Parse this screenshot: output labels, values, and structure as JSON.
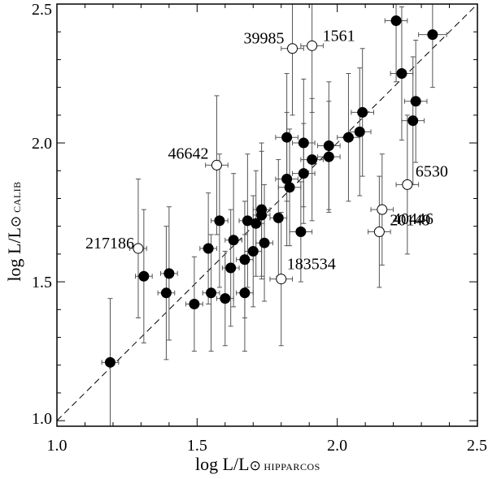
{
  "chart_data": {
    "type": "scatter",
    "title": "",
    "xlabel": {
      "main": "log L/L",
      "sun": "⊙",
      "sub": " HIPPARCOS"
    },
    "ylabel": {
      "main": "log L/L",
      "sun": "⊙",
      "sub": " CALIB"
    },
    "xlim": [
      1.0,
      2.5
    ],
    "ylim": [
      0.98,
      2.5
    ],
    "xticks": [
      "1.0",
      "1.5",
      "2.0",
      "2.5"
    ],
    "yticks": [
      "1.0",
      "1.5",
      "2.0",
      "2.5"
    ],
    "xtick_values": [
      1.0,
      1.5,
      2.0,
      2.5
    ],
    "ytick_values": [
      1.0,
      1.5,
      2.0,
      2.5
    ],
    "grid": false,
    "reference_line": "y = x (dashed)",
    "series": [
      {
        "marker": "filled",
        "points": [
          {
            "x": 1.19,
            "y": 1.21,
            "xerr": 0.03,
            "yerr": 0.23
          },
          {
            "x": 1.31,
            "y": 1.52,
            "xerr": 0.03,
            "yerr": 0.24
          },
          {
            "x": 1.39,
            "y": 1.46,
            "xerr": 0.03,
            "yerr": 0.24
          },
          {
            "x": 1.4,
            "y": 1.53,
            "xerr": 0.03,
            "yerr": 0.24
          },
          {
            "x": 1.49,
            "y": 1.42,
            "xerr": 0.03,
            "yerr": 0.17
          },
          {
            "x": 1.54,
            "y": 1.62,
            "xerr": 0.03,
            "yerr": 0.2
          },
          {
            "x": 1.55,
            "y": 1.46,
            "xerr": 0.03,
            "yerr": 0.21
          },
          {
            "x": 1.58,
            "y": 1.72,
            "xerr": 0.03,
            "yerr": 0.24
          },
          {
            "x": 1.6,
            "y": 1.44,
            "xerr": 0.03,
            "yerr": 0.17
          },
          {
            "x": 1.62,
            "y": 1.55,
            "xerr": 0.03,
            "yerr": 0.21
          },
          {
            "x": 1.63,
            "y": 1.65,
            "xerr": 0.03,
            "yerr": 0.24
          },
          {
            "x": 1.67,
            "y": 1.58,
            "xerr": 0.03,
            "yerr": 0.21
          },
          {
            "x": 1.67,
            "y": 1.46,
            "xerr": 0.03,
            "yerr": 0.21
          },
          {
            "x": 1.68,
            "y": 1.72,
            "xerr": 0.03,
            "yerr": 0.24
          },
          {
            "x": 1.7,
            "y": 1.61,
            "xerr": 0.03,
            "yerr": 0.2
          },
          {
            "x": 1.71,
            "y": 1.71,
            "xerr": 0.03,
            "yerr": 0.19
          },
          {
            "x": 1.73,
            "y": 1.76,
            "xerr": 0.03,
            "yerr": 0.24
          },
          {
            "x": 1.73,
            "y": 1.74,
            "xerr": 0.03,
            "yerr": 0.23
          },
          {
            "x": 1.74,
            "y": 1.64,
            "xerr": 0.03,
            "yerr": 0.21
          },
          {
            "x": 1.79,
            "y": 1.73,
            "xerr": 0.03,
            "yerr": 0.21
          },
          {
            "x": 1.82,
            "y": 2.02,
            "xerr": 0.04,
            "yerr": 0.23
          },
          {
            "x": 1.82,
            "y": 1.87,
            "xerr": 0.04,
            "yerr": 0.24
          },
          {
            "x": 1.83,
            "y": 1.84,
            "xerr": 0.04,
            "yerr": 0.21
          },
          {
            "x": 1.87,
            "y": 1.68,
            "xerr": 0.04,
            "yerr": 0.18
          },
          {
            "x": 1.88,
            "y": 2.0,
            "xerr": 0.04,
            "yerr": 0.23
          },
          {
            "x": 1.88,
            "y": 1.89,
            "xerr": 0.04,
            "yerr": 0.18
          },
          {
            "x": 1.91,
            "y": 1.94,
            "xerr": 0.04,
            "yerr": 0.22
          },
          {
            "x": 1.97,
            "y": 1.99,
            "xerr": 0.04,
            "yerr": 0.23
          },
          {
            "x": 1.97,
            "y": 1.95,
            "xerr": 0.04,
            "yerr": 0.2
          },
          {
            "x": 2.04,
            "y": 2.02,
            "xerr": 0.04,
            "yerr": 0.23
          },
          {
            "x": 2.08,
            "y": 2.04,
            "xerr": 0.04,
            "yerr": 0.23
          },
          {
            "x": 2.09,
            "y": 2.11,
            "xerr": 0.04,
            "yerr": 0.23
          },
          {
            "x": 2.21,
            "y": 2.44,
            "xerr": 0.04,
            "yerr": 0.22
          },
          {
            "x": 2.23,
            "y": 2.25,
            "xerr": 0.04,
            "yerr": 0.24
          },
          {
            "x": 2.27,
            "y": 2.08,
            "xerr": 0.04,
            "yerr": 0.23
          },
          {
            "x": 2.28,
            "y": 2.15,
            "xerr": 0.04,
            "yerr": 0.22
          },
          {
            "x": 2.34,
            "y": 2.39,
            "xerr": 0.05,
            "yerr": 0.19
          }
        ]
      },
      {
        "marker": "open",
        "points": [
          {
            "x": 1.29,
            "y": 1.62,
            "xerr": 0.03,
            "yerr": 0.25,
            "label": "217186"
          },
          {
            "x": 1.57,
            "y": 1.92,
            "xerr": 0.04,
            "yerr": 0.25,
            "label": "46642"
          },
          {
            "x": 1.8,
            "y": 1.51,
            "xerr": 0.04,
            "yerr": 0.24,
            "label": "183534"
          },
          {
            "x": 1.84,
            "y": 2.34,
            "xerr": 0.04,
            "yerr": 0.24,
            "label": "39985"
          },
          {
            "x": 1.91,
            "y": 2.35,
            "xerr": 0.04,
            "yerr": 0.24,
            "label": "1561"
          },
          {
            "x": 2.15,
            "y": 1.68,
            "xerr": 0.04,
            "yerr": 0.2,
            "label": "20149"
          },
          {
            "x": 2.16,
            "y": 1.76,
            "xerr": 0.04,
            "yerr": 0.2,
            "label": "40446"
          },
          {
            "x": 2.25,
            "y": 1.85,
            "xerr": 0.04,
            "yerr": 0.25,
            "label": "6530"
          }
        ]
      }
    ]
  }
}
